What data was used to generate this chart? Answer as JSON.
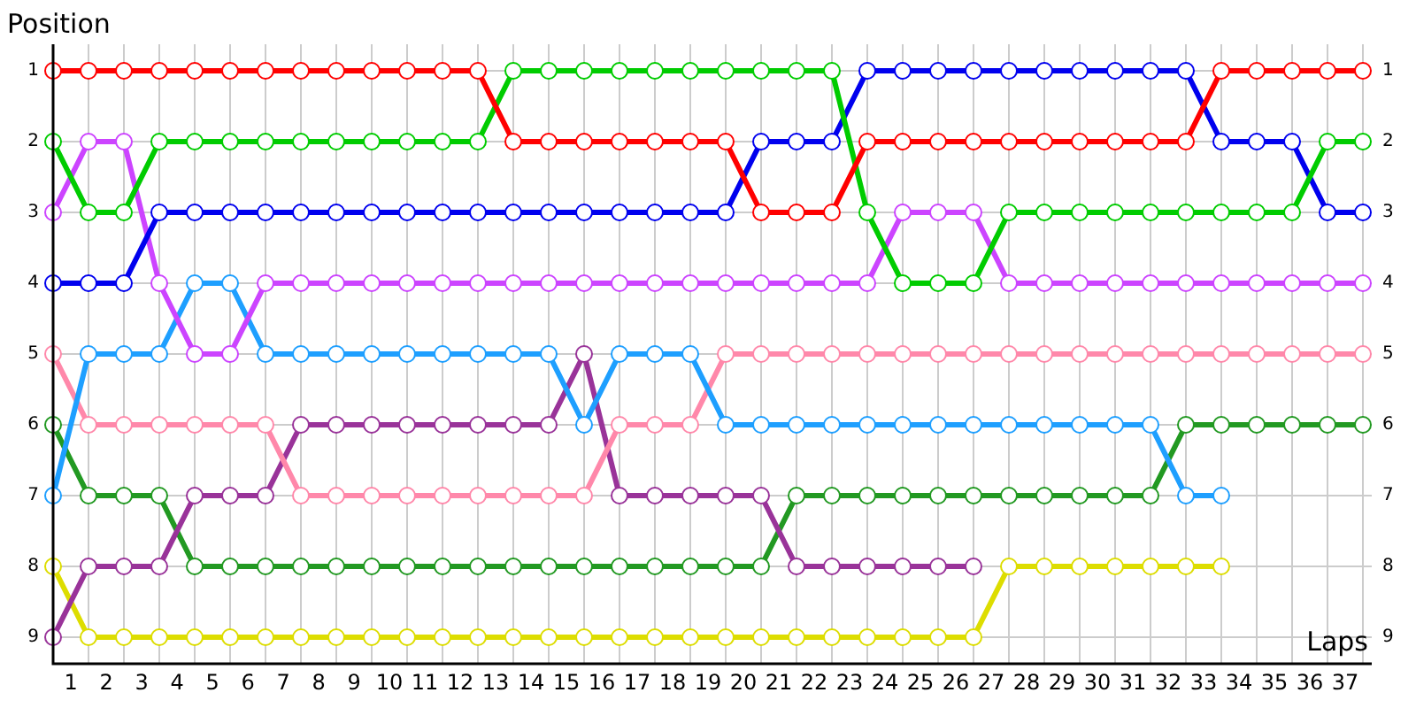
{
  "chart_data": {
    "type": "line",
    "xlabel": "Laps",
    "ylabel": "Position",
    "x": [
      0,
      1,
      2,
      3,
      4,
      5,
      6,
      7,
      8,
      9,
      10,
      11,
      12,
      13,
      14,
      15,
      16,
      17,
      18,
      19,
      20,
      21,
      22,
      23,
      24,
      25,
      26,
      27,
      28,
      29,
      30,
      31,
      32,
      33,
      34,
      35,
      36,
      37
    ],
    "xlim": [
      0,
      37.25
    ],
    "xticks": [
      {
        "value": 0,
        "label": null
      },
      {
        "value": 1,
        "label": null
      },
      {
        "value": 2,
        "label": null
      },
      {
        "value": 3,
        "label": null
      },
      {
        "value": 4,
        "label": null
      },
      {
        "value": 5,
        "label": null
      },
      {
        "value": 6,
        "label": null
      },
      {
        "value": 7,
        "label": null
      },
      {
        "value": 8,
        "label": null
      },
      {
        "value": 9,
        "label": null
      },
      {
        "value": 10,
        "label": null
      },
      {
        "value": 11,
        "label": null
      },
      {
        "value": 12,
        "label": null
      },
      {
        "value": 13,
        "label": null
      },
      {
        "value": 14,
        "label": null
      },
      {
        "value": 15,
        "label": null
      },
      {
        "value": 16,
        "label": null
      },
      {
        "value": 17,
        "label": null
      },
      {
        "value": 18,
        "label": null
      },
      {
        "value": 19,
        "label": null
      },
      {
        "value": 20,
        "label": null
      },
      {
        "value": 21,
        "label": null
      },
      {
        "value": 22,
        "label": null
      },
      {
        "value": 23,
        "label": null
      },
      {
        "value": 24,
        "label": null
      },
      {
        "value": 25,
        "label": null
      },
      {
        "value": 26,
        "label": null
      },
      {
        "value": 27,
        "label": null
      },
      {
        "value": 28,
        "label": null
      },
      {
        "value": 29,
        "label": null
      },
      {
        "value": 30,
        "label": null
      },
      {
        "value": 31,
        "label": null
      },
      {
        "value": 32,
        "label": null
      },
      {
        "value": 33,
        "label": null
      },
      {
        "value": 34,
        "label": null
      },
      {
        "value": 35,
        "label": null
      },
      {
        "value": 36,
        "label": null
      },
      {
        "value": 37,
        "label": null
      },
      {
        "value": 0.5,
        "label": "1"
      },
      {
        "value": 1.5,
        "label": "2"
      },
      {
        "value": 2.5,
        "label": "3"
      },
      {
        "value": 3.5,
        "label": "4"
      },
      {
        "value": 4.5,
        "label": "5"
      },
      {
        "value": 5.5,
        "label": "6"
      },
      {
        "value": 6.5,
        "label": "7"
      },
      {
        "value": 7.5,
        "label": "8"
      },
      {
        "value": 8.5,
        "label": "9"
      },
      {
        "value": 9.5,
        "label": "10"
      },
      {
        "value": 10.5,
        "label": "11"
      },
      {
        "value": 11.5,
        "label": "12"
      },
      {
        "value": 12.5,
        "label": "13"
      },
      {
        "value": 13.5,
        "label": "14"
      },
      {
        "value": 14.5,
        "label": "15"
      },
      {
        "value": 15.5,
        "label": "16"
      },
      {
        "value": 16.5,
        "label": "17"
      },
      {
        "value": 17.5,
        "label": "18"
      },
      {
        "value": 18.5,
        "label": "19"
      },
      {
        "value": 19.5,
        "label": "20"
      },
      {
        "value": 20.5,
        "label": "21"
      },
      {
        "value": 21.5,
        "label": "22"
      },
      {
        "value": 22.5,
        "label": "23"
      },
      {
        "value": 23.5,
        "label": "24"
      },
      {
        "value": 24.5,
        "label": "25"
      },
      {
        "value": 25.5,
        "label": "26"
      },
      {
        "value": 26.5,
        "label": "27"
      },
      {
        "value": 27.5,
        "label": "28"
      },
      {
        "value": 28.5,
        "label": "29"
      },
      {
        "value": 29.5,
        "label": "30"
      },
      {
        "value": 30.5,
        "label": "31"
      },
      {
        "value": 31.5,
        "label": "32"
      },
      {
        "value": 32.5,
        "label": "33"
      },
      {
        "value": 33.5,
        "label": "34"
      },
      {
        "value": 34.5,
        "label": "35"
      },
      {
        "value": 35.5,
        "label": "36"
      },
      {
        "value": 36.5,
        "label": "37"
      }
    ],
    "ylim": [
      9.375,
      0.625
    ],
    "yticks": [
      1,
      2,
      3,
      4,
      5,
      6,
      7,
      8,
      9
    ],
    "y2lim": [
      9.375,
      0.625
    ],
    "y2ticks": [
      1,
      2,
      3,
      4,
      5,
      6,
      7,
      8,
      9
    ],
    "grid": true,
    "legend": false,
    "marker": "circle",
    "line_style": "solid",
    "series": [
      {
        "color": "#ff0000",
        "values": [
          1,
          1,
          1,
          1,
          1,
          1,
          1,
          1,
          1,
          1,
          1,
          1,
          1,
          2,
          2,
          2,
          2,
          2,
          2,
          2,
          3,
          3,
          3,
          2,
          2,
          2,
          2,
          2,
          2,
          2,
          2,
          2,
          2,
          1,
          1,
          1,
          1,
          1
        ]
      },
      {
        "color": "#00cc00",
        "values": [
          2,
          3,
          3,
          2,
          2,
          2,
          2,
          2,
          2,
          2,
          2,
          2,
          2,
          1,
          1,
          1,
          1,
          1,
          1,
          1,
          1,
          1,
          1,
          3,
          4,
          4,
          4,
          3,
          3,
          3,
          3,
          3,
          3,
          3,
          3,
          3,
          2,
          2
        ]
      },
      {
        "color": "#0000ee",
        "values": [
          4,
          4,
          4,
          3,
          3,
          3,
          3,
          3,
          3,
          3,
          3,
          3,
          3,
          3,
          3,
          3,
          3,
          3,
          3,
          3,
          2,
          2,
          2,
          1,
          1,
          1,
          1,
          1,
          1,
          1,
          1,
          1,
          1,
          2,
          2,
          2,
          3,
          3
        ]
      },
      {
        "color": "#cc44ff",
        "values": [
          3,
          2,
          2,
          4,
          5,
          5,
          4,
          4,
          4,
          4,
          4,
          4,
          4,
          4,
          4,
          4,
          4,
          4,
          4,
          4,
          4,
          4,
          4,
          4,
          3,
          3,
          3,
          4,
          4,
          4,
          4,
          4,
          4,
          4,
          4,
          4,
          4,
          4
        ]
      },
      {
        "color": "#1e9fff",
        "values": [
          7,
          5,
          5,
          5,
          4,
          4,
          5,
          5,
          5,
          5,
          5,
          5,
          5,
          5,
          5,
          6,
          5,
          5,
          5,
          6,
          6,
          6,
          6,
          6,
          6,
          6,
          6,
          6,
          6,
          6,
          6,
          6,
          7,
          7,
          null,
          null,
          null,
          null
        ]
      },
      {
        "color": "#ff88aa",
        "values": [
          5,
          6,
          6,
          6,
          6,
          6,
          6,
          7,
          7,
          7,
          7,
          7,
          7,
          7,
          7,
          7,
          6,
          6,
          6,
          5,
          5,
          5,
          5,
          5,
          5,
          5,
          5,
          5,
          5,
          5,
          5,
          5,
          5,
          5,
          5,
          5,
          5,
          5
        ]
      },
      {
        "color": "#993399",
        "values": [
          9,
          8,
          8,
          8,
          7,
          7,
          7,
          6,
          6,
          6,
          6,
          6,
          6,
          6,
          6,
          5,
          7,
          7,
          7,
          7,
          7,
          8,
          8,
          8,
          8,
          8,
          8,
          null,
          null,
          null,
          null,
          null,
          null,
          null,
          null,
          null,
          null,
          null
        ]
      },
      {
        "color": "#229922",
        "values": [
          6,
          7,
          7,
          7,
          8,
          8,
          8,
          8,
          8,
          8,
          8,
          8,
          8,
          8,
          8,
          8,
          8,
          8,
          8,
          8,
          8,
          7,
          7,
          7,
          7,
          7,
          7,
          7,
          7,
          7,
          7,
          7,
          6,
          6,
          6,
          6,
          6,
          6
        ]
      },
      {
        "color": "#dddd00",
        "values": [
          8,
          9,
          9,
          9,
          9,
          9,
          9,
          9,
          9,
          9,
          9,
          9,
          9,
          9,
          9,
          9,
          9,
          9,
          9,
          9,
          9,
          9,
          9,
          9,
          9,
          9,
          9,
          8,
          8,
          8,
          8,
          8,
          8,
          8,
          null,
          null,
          null,
          null
        ]
      }
    ]
  }
}
